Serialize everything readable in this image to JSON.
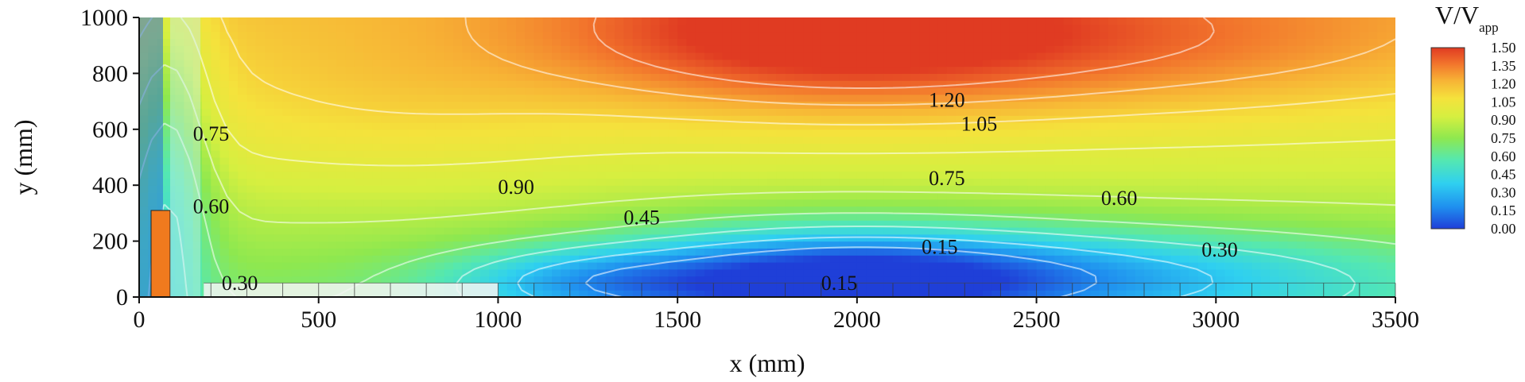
{
  "chart_data": {
    "type": "heatmap",
    "subtype": "filled-contour",
    "title": "",
    "xlabel": "x (mm)",
    "ylabel": "y (mm)",
    "xlim": [
      0,
      3500
    ],
    "ylim": [
      0,
      1000
    ],
    "x_ticks": [
      0,
      500,
      1000,
      1500,
      2000,
      2500,
      3000,
      3500
    ],
    "y_ticks": [
      0,
      200,
      400,
      600,
      800,
      1000
    ],
    "grid": false,
    "colorbar": {
      "title_main": "V/V",
      "title_sub": "app",
      "min": 0.0,
      "max": 1.5,
      "ticks": [
        "1.50",
        "1.35",
        "1.20",
        "1.05",
        "0.90",
        "0.75",
        "0.60",
        "0.45",
        "0.30",
        "0.15",
        "0.00"
      ],
      "colors": [
        "#1f3fd8",
        "#1f8fef",
        "#2fd0f0",
        "#55e8b0",
        "#8ee84f",
        "#d6ef40",
        "#f5e23c",
        "#f7b235",
        "#f2752c",
        "#e03b22"
      ]
    },
    "contour_labels": [
      {
        "text": "0.75",
        "x": 150,
        "y": 560
      },
      {
        "text": "0.60",
        "x": 150,
        "y": 300
      },
      {
        "text": "0.90",
        "x": 1000,
        "y": 370
      },
      {
        "text": "0.45",
        "x": 1350,
        "y": 260
      },
      {
        "text": "1.20",
        "x": 2200,
        "y": 680
      },
      {
        "text": "1.05",
        "x": 2290,
        "y": 595
      },
      {
        "text": "0.75",
        "x": 2200,
        "y": 400
      },
      {
        "text": "0.60",
        "x": 2680,
        "y": 330
      },
      {
        "text": "0.15",
        "x": 2180,
        "y": 155
      },
      {
        "text": "0.30",
        "x": 2960,
        "y": 145
      },
      {
        "text": "0.30",
        "x": 230,
        "y": 25
      },
      {
        "text": "0.15",
        "x": 1900,
        "y": 25
      }
    ],
    "contour_levels": [
      0.15,
      0.3,
      0.45,
      0.6,
      0.75,
      0.9,
      1.05,
      1.2,
      1.35
    ]
  }
}
